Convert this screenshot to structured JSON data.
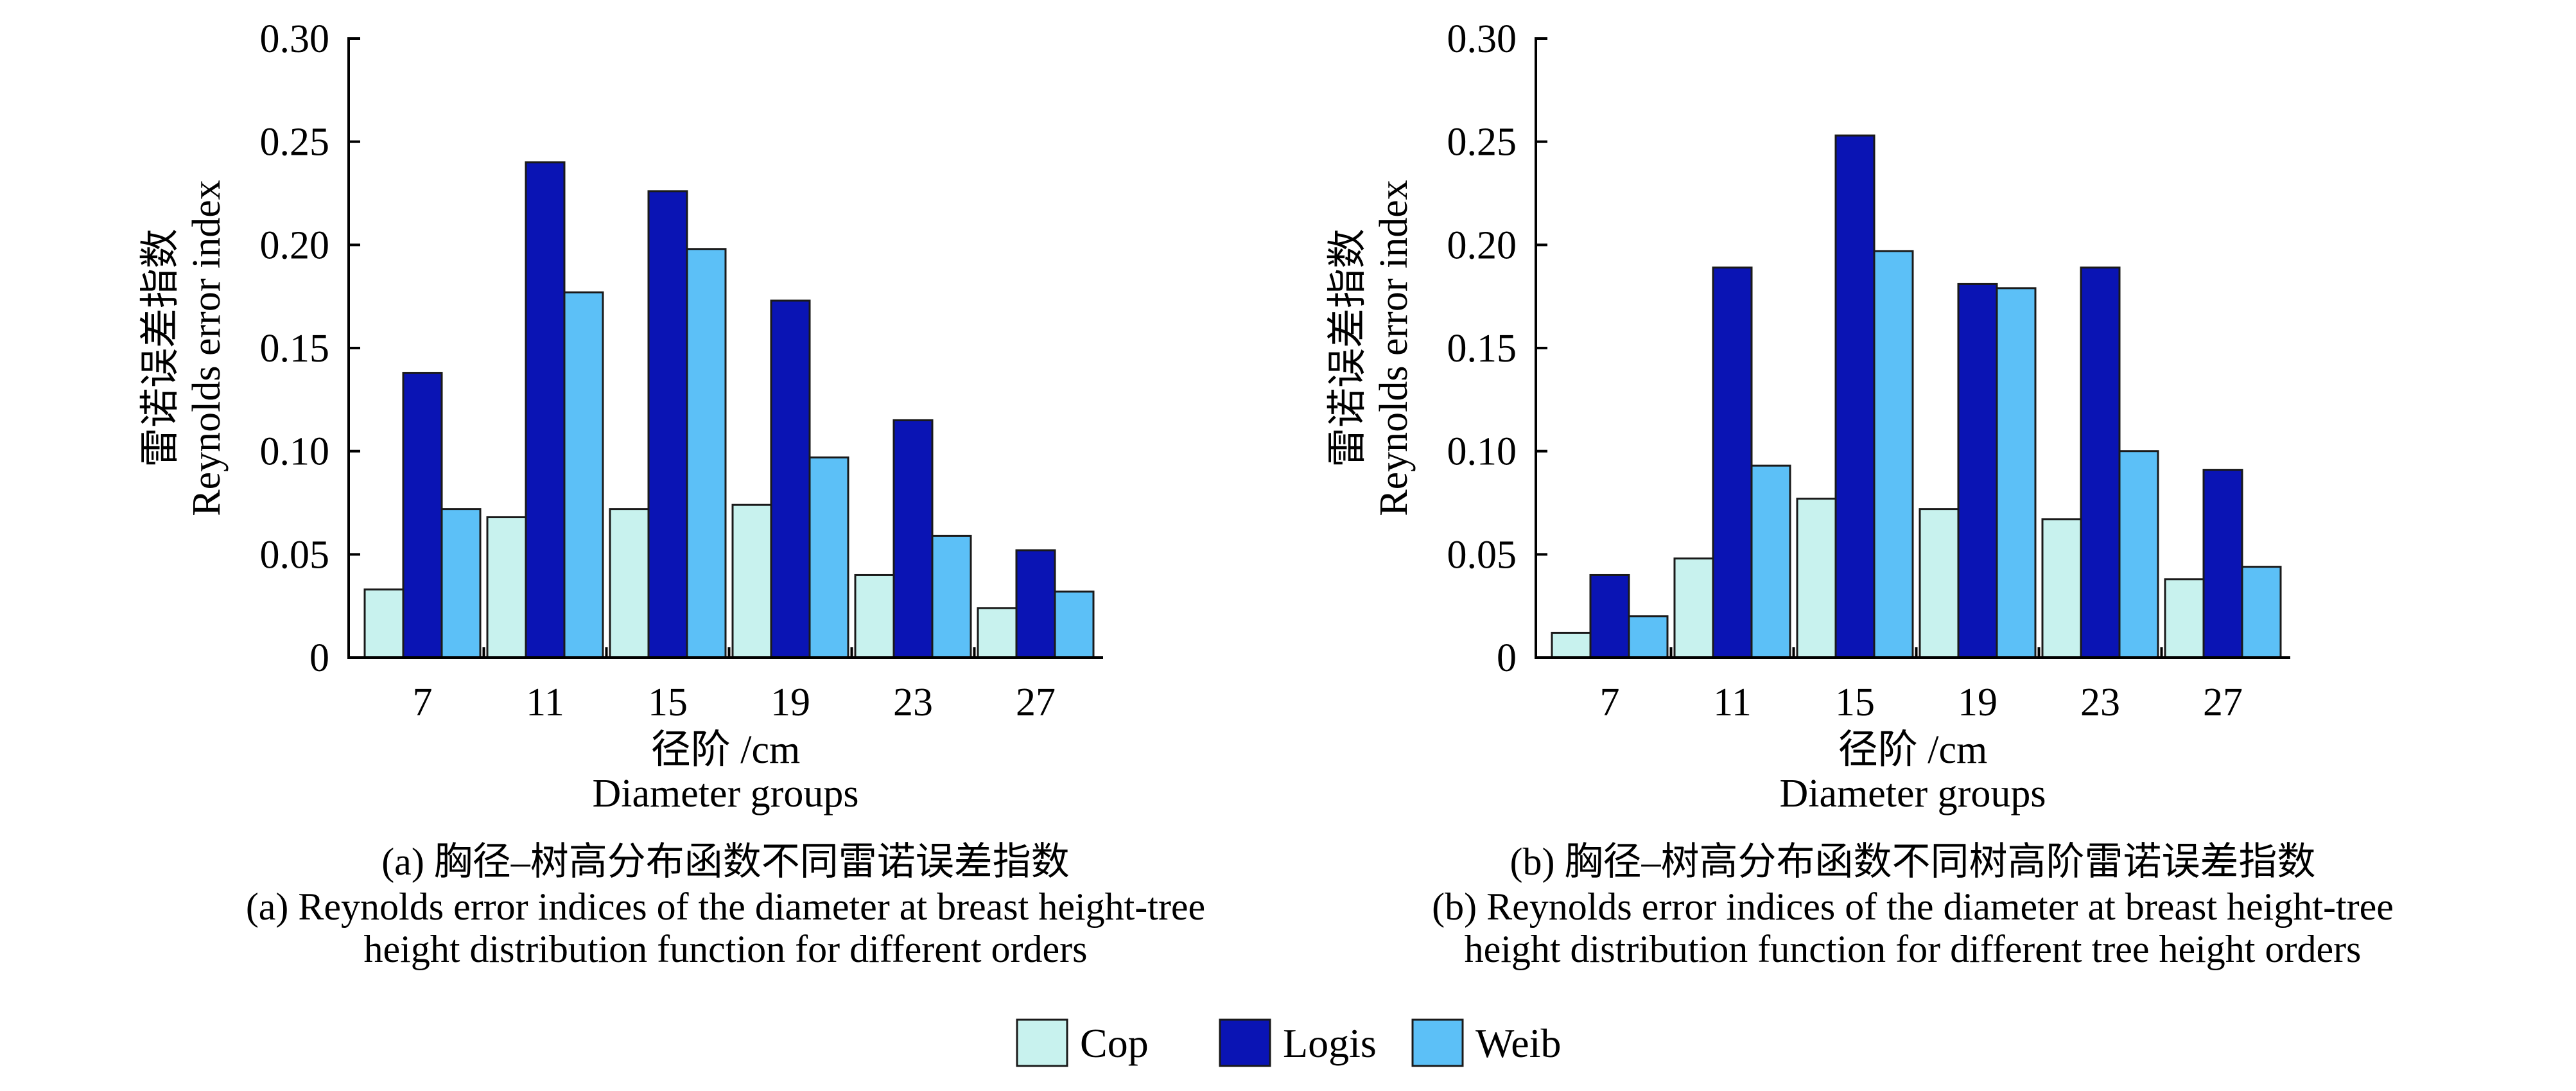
{
  "chart_data": [
    {
      "type": "bar",
      "caption_cn": "(a) 胸径–树高分布函数不同雷诺误差指数",
      "caption_en_line1": "(a) Reynolds error indices of the diameter at breast height-tree",
      "caption_en_line2": "height distribution function for different orders",
      "ylabel_cn": "雷诺误差指数",
      "ylabel_en": "Reynolds error index",
      "xlabel_cn": "径阶 /cm",
      "xlabel_en": "Diameter groups",
      "categories": [
        "7",
        "11",
        "15",
        "19",
        "23",
        "27"
      ],
      "yticks": [
        "0",
        "0.05",
        "0.10",
        "0.15",
        "0.20",
        "0.25",
        "0.30"
      ],
      "ylim": [
        0,
        0.3
      ],
      "series": [
        {
          "name": "Cop",
          "values": [
            0.033,
            0.068,
            0.072,
            0.074,
            0.04,
            0.024
          ]
        },
        {
          "name": "Logis",
          "values": [
            0.138,
            0.24,
            0.226,
            0.173,
            0.115,
            0.052
          ]
        },
        {
          "name": "Weib",
          "values": [
            0.072,
            0.177,
            0.198,
            0.097,
            0.059,
            0.032
          ]
        }
      ]
    },
    {
      "type": "bar",
      "caption_cn": "(b) 胸径–树高分布函数不同树高阶雷诺误差指数",
      "caption_en_line1": "(b) Reynolds error indices of the diameter at breast height-tree",
      "caption_en_line2": "height distribution function for different tree height orders",
      "ylabel_cn": "雷诺误差指数",
      "ylabel_en": "Reynolds error index",
      "xlabel_cn": "径阶 /cm",
      "xlabel_en": "Diameter groups",
      "categories": [
        "7",
        "11",
        "15",
        "19",
        "23",
        "27"
      ],
      "yticks": [
        "0",
        "0.05",
        "0.10",
        "0.15",
        "0.20",
        "0.25",
        "0.30"
      ],
      "ylim": [
        0,
        0.3
      ],
      "series": [
        {
          "name": "Cop",
          "values": [
            0.012,
            0.048,
            0.077,
            0.072,
            0.067,
            0.038
          ]
        },
        {
          "name": "Logis",
          "values": [
            0.04,
            0.189,
            0.253,
            0.181,
            0.189,
            0.091
          ]
        },
        {
          "name": "Weib",
          "values": [
            0.02,
            0.093,
            0.197,
            0.179,
            0.1,
            0.044
          ]
        }
      ]
    }
  ],
  "legend": [
    {
      "name": "Cop",
      "color": "#c8f2ee"
    },
    {
      "name": "Logis",
      "color": "#0a14b4"
    },
    {
      "name": "Weib",
      "color": "#5cc0f7"
    }
  ]
}
